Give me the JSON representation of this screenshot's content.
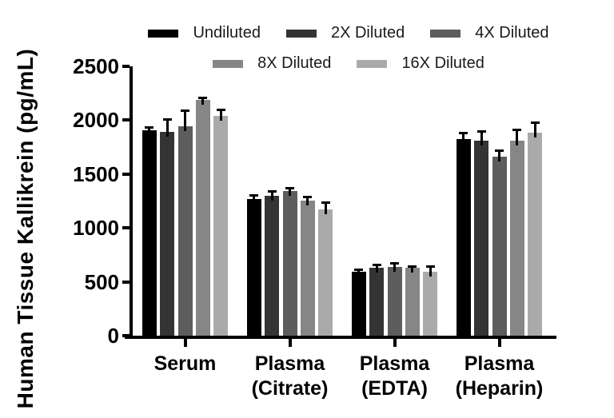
{
  "figure": {
    "ylabel": "Human Tissue Kallikrein (pg/mL)"
  },
  "chart_data": {
    "type": "bar",
    "title": "",
    "xlabel": "",
    "ylabel": "Human Tissue Kallikrein (pg/mL)",
    "ylim": [
      0,
      2500
    ],
    "yticks": [
      0,
      500,
      1000,
      1500,
      2000,
      2500
    ],
    "grid": false,
    "legend_position": "top-two-rows",
    "legend_rows": [
      [
        0,
        1,
        2
      ],
      [
        3,
        4
      ]
    ],
    "categories": [
      "Serum",
      "Plasma (Citrate)",
      "Plasma (EDTA)",
      "Plasma (Heparin)"
    ],
    "category_display_lines": [
      [
        "Serum"
      ],
      [
        "Plasma",
        "(Citrate)"
      ],
      [
        "Plasma",
        "(EDTA)"
      ],
      [
        "Plasma",
        "(Heparin)"
      ]
    ],
    "series": [
      {
        "name": "Undiluted",
        "color": "#000000",
        "values": [
          1905,
          1270,
          590,
          1825
        ],
        "errors": [
          30,
          30,
          20,
          55
        ]
      },
      {
        "name": "2X Diluted",
        "color": "#343434",
        "values": [
          1895,
          1300,
          630,
          1810
        ],
        "errors": [
          110,
          40,
          25,
          85
        ]
      },
      {
        "name": "4X Diluted",
        "color": "#5d5d5d",
        "values": [
          1940,
          1340,
          640,
          1665
        ],
        "errors": [
          150,
          30,
          30,
          55
        ]
      },
      {
        "name": "8X Diluted",
        "color": "#868686",
        "values": [
          2185,
          1255,
          630,
          1810
        ],
        "errors": [
          25,
          30,
          15,
          100
        ]
      },
      {
        "name": "16X Diluted",
        "color": "#aaaaaa",
        "values": [
          2040,
          1170,
          590,
          1885
        ],
        "errors": [
          55,
          65,
          50,
          95
        ]
      }
    ],
    "error_bar_color": "#000000",
    "axis_color": "#000000",
    "background_color": "#ffffff"
  }
}
